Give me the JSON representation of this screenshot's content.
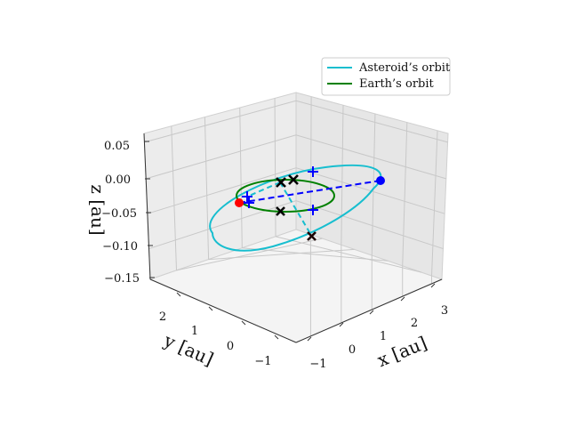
{
  "chart_data": {
    "type": "line",
    "projection": "3d",
    "title": "",
    "xlabel": "x [au]",
    "ylabel": "y [au]",
    "zlabel": "z [au]",
    "xlim": [
      -1.5,
      3.3
    ],
    "ylim": [
      -1.5,
      2.8
    ],
    "zlim": [
      -0.16,
      0.06
    ],
    "xticks": [
      "−1",
      "0",
      "1",
      "2",
      "3"
    ],
    "yticks": [
      "−1",
      "0",
      "1",
      "2"
    ],
    "zticks": [
      "−0.15",
      "−0.10",
      "−0.05",
      "0.00",
      "0.05"
    ],
    "grid": true,
    "legend": {
      "placement": "top-right",
      "entries": [
        "Asteroid’s orbit",
        "Earth’s orbit"
      ]
    },
    "series": [
      {
        "name": "Asteroid’s orbit",
        "color": "#17becf",
        "kind": "ellipse",
        "semi_major_axis": 1.8,
        "eccentricity": 0.6,
        "inclination_deg": 2.5
      },
      {
        "name": "Earth’s orbit",
        "color": "#008000",
        "kind": "circle",
        "radius": 1.0
      }
    ],
    "markers": {
      "perihelion_dot": {
        "color": "#ff0000",
        "x": -0.72,
        "y": 0.0,
        "z": 0.0
      },
      "aphelion_dot": {
        "color": "#0000ff",
        "x": 2.88,
        "y": 0.0,
        "z": 0.0
      },
      "apsidal_line_color": "#0000ff",
      "node_line_color": "#17becf",
      "plus_color": "#0000ff",
      "cross_color": "#000000",
      "cross_highlight_color": "#8b0000"
    }
  },
  "colors": {
    "pane": "#ececec",
    "grid": "#c8c8c8",
    "text": "#111111"
  }
}
